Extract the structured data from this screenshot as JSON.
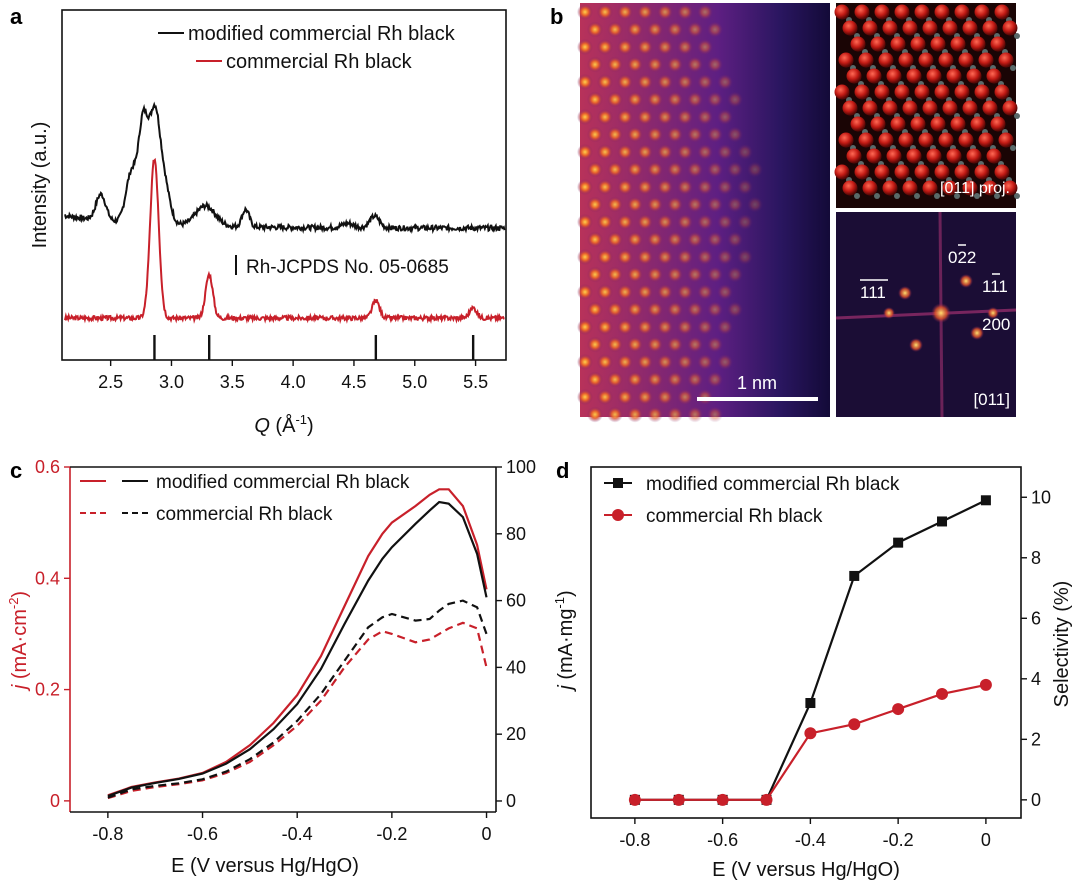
{
  "colors": {
    "black": "#111111",
    "red": "#c8202a"
  },
  "panel_labels": {
    "a": "a",
    "b": "b",
    "c": "c",
    "d": "d"
  },
  "chart_data": [
    {
      "panel": "a",
      "type": "line",
      "title": "",
      "xlabel_main": "Q",
      "xlabel_unit": " (Å",
      "xlabel_sup": "-1",
      "xlabel_close": ")",
      "ylabel": "Intensity (a.u.)",
      "xlim": [
        2.1,
        5.75
      ],
      "xticks": [
        2.5,
        3.0,
        3.5,
        4.0,
        4.5,
        5.0,
        5.5
      ],
      "xtick_labels": [
        "2.5",
        "3.0",
        "3.5",
        "4.0",
        "4.5",
        "5.0",
        "5.5"
      ],
      "legend": [
        "modified commercial Rh black",
        "commercial Rh black"
      ],
      "reference_label": "Rh-JCPDS No. 05-0685",
      "reference_peaks": [
        2.86,
        3.31,
        4.68,
        5.48
      ],
      "series": [
        {
          "name": "modified commercial Rh black",
          "color": "#111111",
          "baseline": 6.2,
          "peaks": [
            [
              2.42,
              1.8,
              0.04
            ],
            [
              2.67,
              3.4,
              0.045
            ],
            [
              2.77,
              7.0,
              0.04
            ],
            [
              2.86,
              6.5,
              0.04
            ],
            [
              2.93,
              3.2,
              0.05
            ],
            [
              3.28,
              1.4,
              0.08
            ],
            [
              3.61,
              1.2,
              0.03
            ],
            [
              4.67,
              0.8,
              0.04
            ],
            [
              4.45,
              0.3,
              0.05
            ]
          ]
        },
        {
          "name": "commercial Rh black",
          "color": "#c8202a",
          "baseline": 0,
          "peaks": [
            [
              2.86,
              11.0,
              0.035
            ],
            [
              3.31,
              3.0,
              0.03
            ],
            [
              4.68,
              1.2,
              0.03
            ],
            [
              5.48,
              0.7,
              0.03
            ]
          ]
        }
      ]
    },
    {
      "panel": "b",
      "type": "other",
      "scale_bar": "1 nm",
      "inset_top_label": "[011] proj.",
      "inset_bottom_labels": [
        "022",
        "111",
        "111",
        "200",
        "[011]"
      ]
    },
    {
      "panel": "c",
      "type": "line",
      "xlabel": "E (V versus Hg/HgO)",
      "ylabel_left_main": "j",
      "ylabel_left_unit": " (mA·cm",
      "ylabel_left_sup": "-2",
      "ylabel_left_close": ")",
      "xlim": [
        -0.88,
        0.02
      ],
      "ylim_left": [
        -0.02,
        0.6
      ],
      "ylim_right": [
        -3.3,
        100
      ],
      "xticks": [
        -0.8,
        -0.6,
        -0.4,
        -0.2,
        0
      ],
      "xtick_labels": [
        "-0.8",
        "-0.6",
        "-0.4",
        "-0.2",
        "0"
      ],
      "yticks_left": [
        0,
        0.2,
        0.4,
        0.6
      ],
      "ytick_labels_left": [
        "0",
        "0.2",
        "0.4",
        "0.6"
      ],
      "yticks_right": [
        0,
        20,
        40,
        60,
        80,
        100
      ],
      "ytick_labels_right": [
        "0",
        "20",
        "40",
        "60",
        "80",
        "100"
      ],
      "legend": [
        "modified commercial Rh black",
        "commercial Rh black"
      ],
      "x": [
        -0.8,
        -0.75,
        -0.7,
        -0.65,
        -0.6,
        -0.55,
        -0.5,
        -0.45,
        -0.4,
        -0.35,
        -0.3,
        -0.25,
        -0.22,
        -0.2,
        -0.15,
        -0.12,
        -0.1,
        -0.08,
        -0.05,
        -0.02,
        0.0
      ],
      "series": [
        {
          "name": "modified commercial Rh black (left, mA·cm-2)",
          "color": "#c8202a",
          "dash": false,
          "values": [
            0.01,
            0.025,
            0.033,
            0.04,
            0.05,
            0.07,
            0.1,
            0.14,
            0.19,
            0.26,
            0.35,
            0.44,
            0.48,
            0.5,
            0.53,
            0.55,
            0.56,
            0.56,
            0.53,
            0.46,
            0.38
          ]
        },
        {
          "name": "modified commercial Rh black (right, mA·mg-1)",
          "color": "#111111",
          "dash": false,
          "values": [
            1.5,
            4.0,
            5.4,
            6.6,
            8.2,
            11.2,
            15.5,
            21.5,
            29,
            39.5,
            53,
            66,
            72.5,
            76,
            83,
            87,
            89.5,
            89,
            85,
            74,
            61
          ]
        },
        {
          "name": "commercial Rh black (left, mA·cm-2)",
          "color": "#c8202a",
          "dash": true,
          "values": [
            0.005,
            0.018,
            0.025,
            0.03,
            0.037,
            0.05,
            0.07,
            0.1,
            0.135,
            0.18,
            0.24,
            0.29,
            0.305,
            0.3,
            0.285,
            0.29,
            0.3,
            0.31,
            0.32,
            0.31,
            0.24
          ]
        },
        {
          "name": "commercial Rh black (right, mA·mg-1)",
          "color": "#111111",
          "dash": true,
          "values": [
            1.0,
            3.5,
            4.5,
            5.3,
            6.5,
            8.8,
            12.5,
            17.5,
            24,
            32,
            42,
            52,
            55,
            56,
            54,
            54.5,
            57,
            59,
            60,
            58,
            50
          ]
        }
      ]
    },
    {
      "panel": "d",
      "type": "line",
      "xlabel": "E (V versus Hg/HgO)",
      "ylabel_left_main": "j",
      "ylabel_left_unit": " (mA·mg",
      "ylabel_left_sup": "-1",
      "ylabel_left_close": ")",
      "ylabel_right": "Selectivity (%)",
      "xlim": [
        -0.9,
        0.08
      ],
      "ylim": [
        -0.6,
        11
      ],
      "xticks": [
        -0.8,
        -0.6,
        -0.4,
        -0.2,
        0
      ],
      "xtick_labels": [
        "-0.8",
        "-0.6",
        "-0.4",
        "-0.2",
        "0"
      ],
      "yticks": [
        0,
        2,
        4,
        6,
        8,
        10
      ],
      "ytick_labels": [
        "0",
        "2",
        "4",
        "6",
        "8",
        "10"
      ],
      "legend": [
        "modified commercial Rh black",
        "commercial Rh black"
      ],
      "x": [
        -0.8,
        -0.7,
        -0.6,
        -0.5,
        -0.4,
        -0.3,
        -0.2,
        -0.1,
        0.0
      ],
      "series": [
        {
          "name": "modified commercial Rh black",
          "color": "#111111",
          "marker": "square",
          "values": [
            0,
            0,
            0,
            0,
            3.2,
            7.4,
            8.5,
            9.2,
            9.9
          ]
        },
        {
          "name": "commercial Rh black",
          "color": "#c8202a",
          "marker": "circle",
          "values": [
            0,
            0,
            0,
            0,
            2.2,
            2.5,
            3.0,
            3.5,
            3.8
          ]
        }
      ]
    }
  ]
}
